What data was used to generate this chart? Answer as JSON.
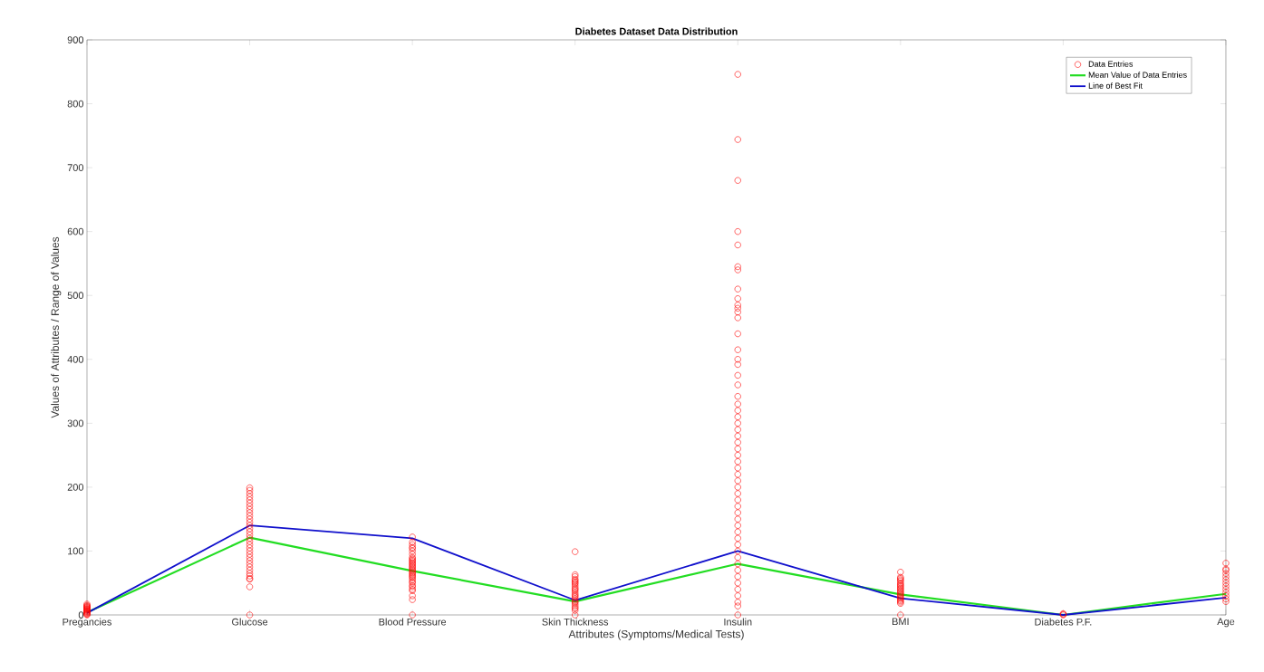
{
  "chart_data": {
    "type": "line",
    "title": "Diabetes Dataset Data Distribution",
    "xlabel": "Attributes  (Symptoms/Medical Tests)",
    "ylabel": "Values of Attributes  /  Range of Values",
    "categories": [
      "Pregancies",
      "Glucose",
      "Blood Pressure",
      "Skin Thickness",
      "Insulin",
      "BMI",
      "Diabetes P.F.",
      "Age"
    ],
    "ylim": [
      0,
      900
    ],
    "yticks": [
      0,
      100,
      200,
      300,
      400,
      500,
      600,
      700,
      800,
      900
    ],
    "legend": "top right",
    "grid": false,
    "series": [
      {
        "name": "Data Entries",
        "type": "scatter",
        "marker": "circle",
        "color": "#ff0000",
        "x": [
          "Pregancies",
          "Pregancies",
          "Pregancies",
          "Pregancies",
          "Pregancies",
          "Pregancies",
          "Pregancies",
          "Pregancies",
          "Pregancies",
          "Pregancies",
          "Pregancies",
          "Pregancies",
          "Pregancies",
          "Pregancies",
          "Pregancies",
          "Pregancies",
          "Pregancies",
          "Glucose",
          "Glucose",
          "Glucose",
          "Glucose",
          "Glucose",
          "Glucose",
          "Glucose",
          "Glucose",
          "Glucose",
          "Glucose",
          "Glucose",
          "Glucose",
          "Glucose",
          "Glucose",
          "Glucose",
          "Glucose",
          "Glucose",
          "Glucose",
          "Glucose",
          "Glucose",
          "Glucose",
          "Glucose",
          "Glucose",
          "Glucose",
          "Glucose",
          "Glucose",
          "Glucose",
          "Glucose",
          "Glucose",
          "Glucose",
          "Glucose",
          "Glucose",
          "Glucose",
          "Blood Pressure",
          "Blood Pressure",
          "Blood Pressure",
          "Blood Pressure",
          "Blood Pressure",
          "Blood Pressure",
          "Blood Pressure",
          "Blood Pressure",
          "Blood Pressure",
          "Blood Pressure",
          "Blood Pressure",
          "Blood Pressure",
          "Blood Pressure",
          "Blood Pressure",
          "Blood Pressure",
          "Blood Pressure",
          "Blood Pressure",
          "Blood Pressure",
          "Blood Pressure",
          "Blood Pressure",
          "Blood Pressure",
          "Blood Pressure",
          "Blood Pressure",
          "Blood Pressure",
          "Blood Pressure",
          "Blood Pressure",
          "Blood Pressure",
          "Blood Pressure",
          "Blood Pressure",
          "Blood Pressure",
          "Blood Pressure",
          "Blood Pressure",
          "Blood Pressure",
          "Blood Pressure",
          "Skin Thickness",
          "Skin Thickness",
          "Skin Thickness",
          "Skin Thickness",
          "Skin Thickness",
          "Skin Thickness",
          "Skin Thickness",
          "Skin Thickness",
          "Skin Thickness",
          "Skin Thickness",
          "Skin Thickness",
          "Skin Thickness",
          "Skin Thickness",
          "Skin Thickness",
          "Skin Thickness",
          "Skin Thickness",
          "Skin Thickness",
          "Skin Thickness",
          "Skin Thickness",
          "Skin Thickness",
          "Skin Thickness",
          "Skin Thickness",
          "Skin Thickness",
          "Skin Thickness",
          "Skin Thickness",
          "Insulin",
          "Insulin",
          "Insulin",
          "Insulin",
          "Insulin",
          "Insulin",
          "Insulin",
          "Insulin",
          "Insulin",
          "Insulin",
          "Insulin",
          "Insulin",
          "Insulin",
          "Insulin",
          "Insulin",
          "Insulin",
          "Insulin",
          "Insulin",
          "Insulin",
          "Insulin",
          "Insulin",
          "Insulin",
          "Insulin",
          "Insulin",
          "Insulin",
          "Insulin",
          "Insulin",
          "Insulin",
          "Insulin",
          "Insulin",
          "Insulin",
          "Insulin",
          "Insulin",
          "Insulin",
          "Insulin",
          "Insulin",
          "Insulin",
          "Insulin",
          "Insulin",
          "Insulin",
          "Insulin",
          "Insulin",
          "Insulin",
          "Insulin",
          "Insulin",
          "Insulin",
          "Insulin",
          "Insulin",
          "Insulin",
          "Insulin",
          "Insulin",
          "Insulin",
          "Insulin",
          "Insulin",
          "BMI",
          "BMI",
          "BMI",
          "BMI",
          "BMI",
          "BMI",
          "BMI",
          "BMI",
          "BMI",
          "BMI",
          "BMI",
          "BMI",
          "BMI",
          "BMI",
          "BMI",
          "BMI",
          "BMI",
          "BMI",
          "BMI",
          "BMI",
          "BMI",
          "BMI",
          "BMI",
          "Diabetes P.F.",
          "Diabetes P.F.",
          "Diabetes P.F.",
          "Age",
          "Age",
          "Age",
          "Age",
          "Age",
          "Age",
          "Age",
          "Age",
          "Age",
          "Age",
          "Age",
          "Age",
          "Age"
        ],
        "values": [
          0,
          1,
          2,
          3,
          4,
          5,
          6,
          7,
          8,
          9,
          10,
          11,
          12,
          13,
          14,
          15,
          17,
          0,
          44,
          56,
          57,
          61,
          65,
          70,
          75,
          80,
          85,
          90,
          95,
          100,
          105,
          110,
          115,
          120,
          125,
          130,
          135,
          140,
          145,
          150,
          155,
          160,
          165,
          170,
          175,
          180,
          185,
          190,
          195,
          199,
          0,
          24,
          30,
          38,
          40,
          44,
          46,
          50,
          52,
          55,
          58,
          60,
          62,
          64,
          66,
          68,
          70,
          72,
          74,
          76,
          78,
          80,
          82,
          84,
          86,
          88,
          90,
          95,
          100,
          104,
          106,
          110,
          114,
          122,
          0,
          7,
          10,
          12,
          15,
          18,
          20,
          22,
          25,
          28,
          30,
          32,
          35,
          38,
          40,
          42,
          45,
          48,
          50,
          52,
          54,
          56,
          60,
          63,
          99,
          0,
          14,
          20,
          30,
          40,
          50,
          60,
          70,
          80,
          90,
          100,
          110,
          120,
          130,
          140,
          150,
          160,
          170,
          180,
          190,
          200,
          210,
          220,
          230,
          240,
          250,
          260,
          270,
          280,
          290,
          300,
          310,
          320,
          330,
          342,
          360,
          375,
          392,
          400,
          415,
          440,
          465,
          474,
          480,
          485,
          495,
          510,
          540,
          545,
          579,
          600,
          680,
          744,
          846,
          0,
          18,
          20,
          22,
          24,
          26,
          28,
          30,
          32,
          34,
          36,
          38,
          40,
          42,
          44,
          46,
          48,
          50,
          53,
          55,
          57,
          59,
          67,
          0,
          1,
          2,
          21,
          25,
          30,
          35,
          40,
          45,
          50,
          55,
          60,
          65,
          70,
          72,
          81
        ]
      },
      {
        "name": "Mean Value of Data Entries",
        "color": "#22dd22",
        "values": [
          4,
          121,
          69,
          21,
          80,
          32,
          0,
          33
        ]
      },
      {
        "name": "Line of Best Fit",
        "color": "#1010cc",
        "values": [
          3,
          140,
          120,
          23,
          100,
          26,
          0,
          27
        ]
      }
    ]
  }
}
